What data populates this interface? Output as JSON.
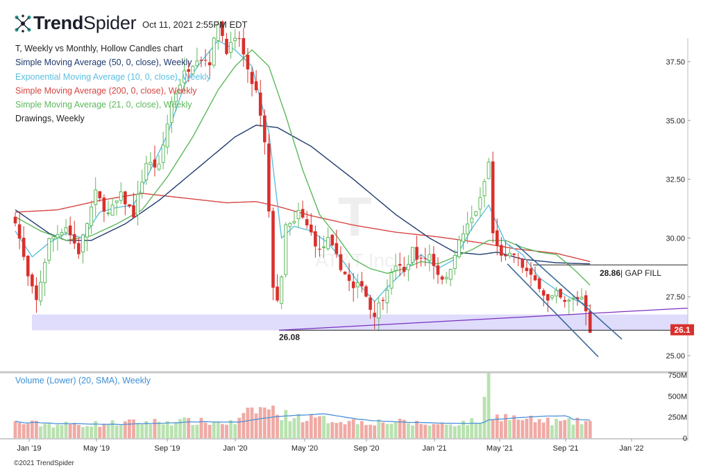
{
  "header": {
    "brand_prefix": "Trend",
    "brand_suffix": "Spider",
    "timestamp": "Oct 11, 2021 2:55PM EDT"
  },
  "legend": {
    "chart_title": "T, Weekly vs Monthly, Hollow Candles chart",
    "items": [
      {
        "label": "Simple Moving Average (50, 0, close), Weekly",
        "color": "#1f3a6e"
      },
      {
        "label": "Exponential Moving Average (10, 0, close), Weekly",
        "color": "#5bbfe0"
      },
      {
        "label": "Simple Moving Average (200, 0, close), Weekly",
        "color": "#d64541"
      },
      {
        "label": "Simple Moving Average (21, 0, close), Weekly",
        "color": "#5cb85c"
      },
      {
        "label": "Drawings, Weekly",
        "color": "#222222"
      }
    ],
    "volume_label": "Volume (Lower) (20, SMA), Weekly"
  },
  "watermark": {
    "symbol": "T",
    "name": "AT&T Inc"
  },
  "copyright": "©2021 TrendSpider",
  "colors": {
    "up": "#5cb85c",
    "down": "#d9302c",
    "sma50": "#1f3a6e",
    "ema10": "#5bbfe0",
    "sma200": "#d64541",
    "sma21": "#5cb85c",
    "support_zone": "#d9d6fb",
    "trendline": "#7b2fbf",
    "channel": "#3a6a9a",
    "price_tag": "#d9302c"
  },
  "chart_data": {
    "type": "candlestick",
    "symbol": "T",
    "timeframe": "Weekly",
    "ylim": [
      24.5,
      38.5
    ],
    "y_ticks": [
      "25.00",
      "27.50",
      "30.00",
      "32.50",
      "35.00",
      "37.50"
    ],
    "x_labels": [
      "Jan '19",
      "May '19",
      "Sep '19",
      "Jan '20",
      "May '20",
      "Sep '20",
      "Jan '21",
      "May '21",
      "Sep '21",
      "Jan '22"
    ],
    "annotations": {
      "low_label": "26.08",
      "gap_fill_value": "28.86",
      "gap_fill_text": "| GAP FILL",
      "last_price": "26.1"
    },
    "volume_ticks": [
      "750M",
      "500M",
      "250M",
      "0"
    ],
    "volume_max": 750,
    "price_path": [
      [
        0,
        30.8
      ],
      [
        3,
        28.3
      ],
      [
        5,
        27.3
      ],
      [
        8,
        29.9
      ],
      [
        12,
        30.5
      ],
      [
        15,
        29.4
      ],
      [
        19,
        31.9
      ],
      [
        22,
        31.0
      ],
      [
        25,
        31.8
      ],
      [
        28,
        31.0
      ],
      [
        31,
        33.2
      ],
      [
        34,
        33.0
      ],
      [
        37,
        35.8
      ],
      [
        40,
        37.0
      ],
      [
        43,
        37.7
      ],
      [
        46,
        37.5
      ],
      [
        48,
        39.2
      ],
      [
        50,
        38.0
      ],
      [
        53,
        38.5
      ],
      [
        55,
        37.0
      ],
      [
        57,
        36.2
      ],
      [
        59,
        34.0
      ],
      [
        61,
        28.0
      ],
      [
        62,
        27.4
      ],
      [
        63,
        28.2
      ],
      [
        64,
        30.5
      ],
      [
        66,
        30.6
      ],
      [
        67,
        31.1
      ],
      [
        70,
        30.2
      ],
      [
        72,
        29.4
      ],
      [
        74,
        29.9
      ],
      [
        77,
        28.8
      ],
      [
        80,
        27.8
      ],
      [
        82,
        28.1
      ],
      [
        84,
        27.0
      ],
      [
        85,
        26.8
      ],
      [
        87,
        27.5
      ],
      [
        89,
        28.4
      ],
      [
        90,
        28.9
      ],
      [
        92,
        28.5
      ],
      [
        94,
        29.5
      ],
      [
        96,
        29.0
      ],
      [
        98,
        29.3
      ],
      [
        100,
        28.5
      ],
      [
        102,
        28.2
      ],
      [
        104,
        29.4
      ],
      [
        106,
        30.2
      ],
      [
        108,
        30.8
      ],
      [
        110,
        31.6
      ],
      [
        112,
        33.2
      ],
      [
        113,
        30.2
      ],
      [
        114,
        29.6
      ],
      [
        116,
        29.1
      ],
      [
        118,
        29.3
      ],
      [
        120,
        28.8
      ],
      [
        122,
        28.3
      ],
      [
        124,
        28.0
      ],
      [
        126,
        27.3
      ],
      [
        128,
        27.6
      ],
      [
        130,
        27.2
      ],
      [
        132,
        27.4
      ],
      [
        134,
        27.5
      ],
      [
        135,
        27.0
      ],
      [
        136,
        26.1
      ]
    ],
    "volume_profile": [
      [
        0,
        180
      ],
      [
        10,
        160
      ],
      [
        20,
        170
      ],
      [
        30,
        190
      ],
      [
        40,
        200
      ],
      [
        52,
        180
      ],
      [
        56,
        330
      ],
      [
        60,
        360
      ],
      [
        63,
        280
      ],
      [
        70,
        230
      ],
      [
        80,
        200
      ],
      [
        90,
        190
      ],
      [
        100,
        160
      ],
      [
        110,
        200
      ],
      [
        112,
        700
      ],
      [
        113,
        280
      ],
      [
        120,
        220
      ],
      [
        130,
        190
      ],
      [
        136,
        200
      ]
    ],
    "sma50": [
      [
        0,
        31.2
      ],
      [
        4,
        30.7
      ],
      [
        8,
        30.2
      ],
      [
        12,
        29.9
      ],
      [
        18,
        29.9
      ],
      [
        26,
        30.6
      ],
      [
        34,
        31.6
      ],
      [
        42,
        32.8
      ],
      [
        52,
        34.3
      ],
      [
        57,
        34.8
      ],
      [
        62,
        34.7
      ],
      [
        70,
        33.9
      ],
      [
        80,
        32.5
      ],
      [
        90,
        31.0
      ],
      [
        98,
        30.0
      ],
      [
        104,
        29.4
      ],
      [
        110,
        29.3
      ],
      [
        114,
        29.4
      ],
      [
        120,
        29.1
      ],
      [
        128,
        28.95
      ],
      [
        136,
        28.9
      ]
    ],
    "sma200": [
      [
        0,
        31.1
      ],
      [
        10,
        31.2
      ],
      [
        20,
        31.6
      ],
      [
        30,
        31.9
      ],
      [
        40,
        31.7
      ],
      [
        50,
        31.5
      ],
      [
        57,
        31.55
      ],
      [
        62,
        31.35
      ],
      [
        70,
        30.95
      ],
      [
        80,
        30.55
      ],
      [
        90,
        30.25
      ],
      [
        100,
        30.05
      ],
      [
        110,
        29.8
      ],
      [
        118,
        29.55
      ],
      [
        128,
        29.35
      ],
      [
        136,
        29.0
      ]
    ],
    "ema10": [
      [
        0,
        30.3
      ],
      [
        4,
        29.2
      ],
      [
        8,
        29.8
      ],
      [
        12,
        30.2
      ],
      [
        16,
        30.0
      ],
      [
        20,
        31.1
      ],
      [
        24,
        31.3
      ],
      [
        28,
        31.4
      ],
      [
        32,
        32.9
      ],
      [
        36,
        34.4
      ],
      [
        40,
        36.5
      ],
      [
        44,
        37.5
      ],
      [
        48,
        38.4
      ],
      [
        52,
        38.0
      ],
      [
        56,
        37.3
      ],
      [
        60,
        34.5
      ],
      [
        63,
        30.0
      ],
      [
        66,
        30.5
      ],
      [
        70,
        30.3
      ],
      [
        74,
        29.8
      ],
      [
        78,
        28.9
      ],
      [
        82,
        27.9
      ],
      [
        85,
        27.3
      ],
      [
        88,
        27.9
      ],
      [
        92,
        28.6
      ],
      [
        96,
        29.3
      ],
      [
        100,
        28.7
      ],
      [
        104,
        29.1
      ],
      [
        108,
        30.4
      ],
      [
        112,
        31.4
      ],
      [
        116,
        29.8
      ],
      [
        120,
        29.3
      ],
      [
        124,
        28.3
      ],
      [
        128,
        27.8
      ],
      [
        132,
        27.4
      ],
      [
        136,
        27.1
      ]
    ],
    "sma21": [
      [
        0,
        30.9
      ],
      [
        6,
        30.3
      ],
      [
        12,
        29.9
      ],
      [
        18,
        30.1
      ],
      [
        24,
        30.6
      ],
      [
        30,
        31.2
      ],
      [
        36,
        32.6
      ],
      [
        42,
        34.3
      ],
      [
        48,
        36.3
      ],
      [
        52,
        37.3
      ],
      [
        56,
        38.0
      ],
      [
        60,
        37.3
      ],
      [
        64,
        35.2
      ],
      [
        68,
        32.9
      ],
      [
        72,
        31.0
      ],
      [
        76,
        30.1
      ],
      [
        80,
        29.1
      ],
      [
        84,
        28.7
      ],
      [
        88,
        28.5
      ],
      [
        92,
        28.7
      ],
      [
        96,
        29.0
      ],
      [
        100,
        28.9
      ],
      [
        104,
        29.2
      ],
      [
        108,
        29.5
      ],
      [
        112,
        29.9
      ],
      [
        116,
        29.9
      ],
      [
        120,
        29.6
      ],
      [
        124,
        29.4
      ],
      [
        128,
        29.3
      ],
      [
        132,
        28.7
      ],
      [
        136,
        28.0
      ]
    ]
  }
}
